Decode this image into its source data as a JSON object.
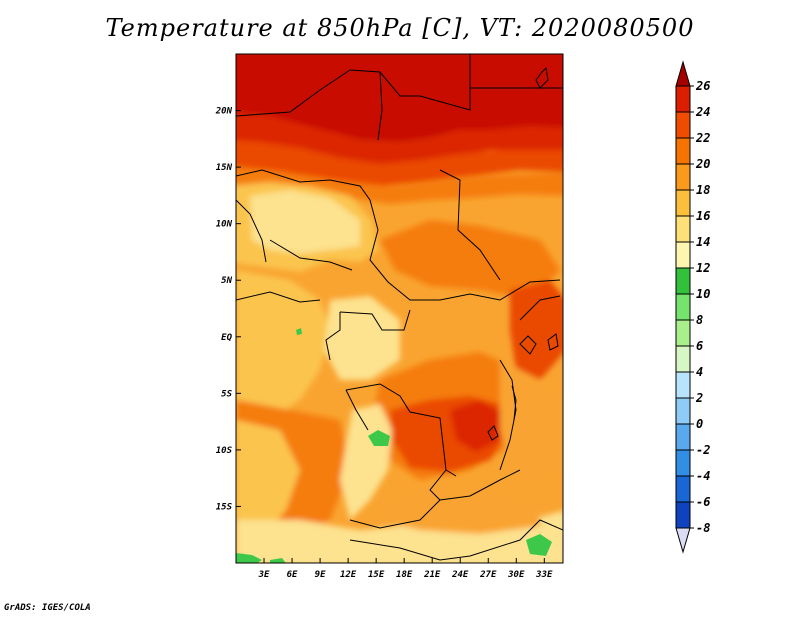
{
  "title": "Temperature at 850hPa [C], VT: 2020080500",
  "credit": "GrADS: IGES/COLA",
  "map": {
    "lon_labels": [
      "3E",
      "6E",
      "9E",
      "12E",
      "15E",
      "18E",
      "21E",
      "24E",
      "27E",
      "30E",
      "33E"
    ],
    "lon_values": [
      3,
      6,
      9,
      12,
      15,
      18,
      21,
      24,
      27,
      30,
      33
    ],
    "lat_labels": [
      "20N",
      "15N",
      "10N",
      "5N",
      "EQ",
      "5S",
      "10S",
      "15S"
    ],
    "lat_values": [
      20,
      15,
      10,
      5,
      0,
      -5,
      -10,
      -15
    ],
    "lon_range": [
      0,
      35
    ],
    "lat_range": [
      -20,
      25
    ]
  },
  "colorbar": {
    "labels": [
      "26",
      "24",
      "22",
      "20",
      "18",
      "16",
      "14",
      "12",
      "10",
      "8",
      "6",
      "4",
      "2",
      "0",
      "-2",
      "-4",
      "-6",
      "-8"
    ],
    "colors": [
      "#a50000",
      "#dc1e00",
      "#ef4c00",
      "#f57300",
      "#f99a1c",
      "#fbbf3c",
      "#fde077",
      "#fef5b0",
      "#33c13c",
      "#76e36f",
      "#a9f08c",
      "#d6f6c4",
      "#b8e3fc",
      "#8ecbf7",
      "#5aa9ee",
      "#328ee4",
      "#1967d5",
      "#1042c0",
      "#0a22a2",
      "#080b72",
      "#dcdcf5"
    ]
  },
  "colors": {
    "c26": "#c80f00",
    "c24": "#dc2600",
    "c22": "#ea4a00",
    "c20": "#f57d10",
    "c18": "#f9a431",
    "c16": "#fbc44e",
    "c14": "#fde28f",
    "green": "#3ec84a",
    "border": "#000000"
  }
}
